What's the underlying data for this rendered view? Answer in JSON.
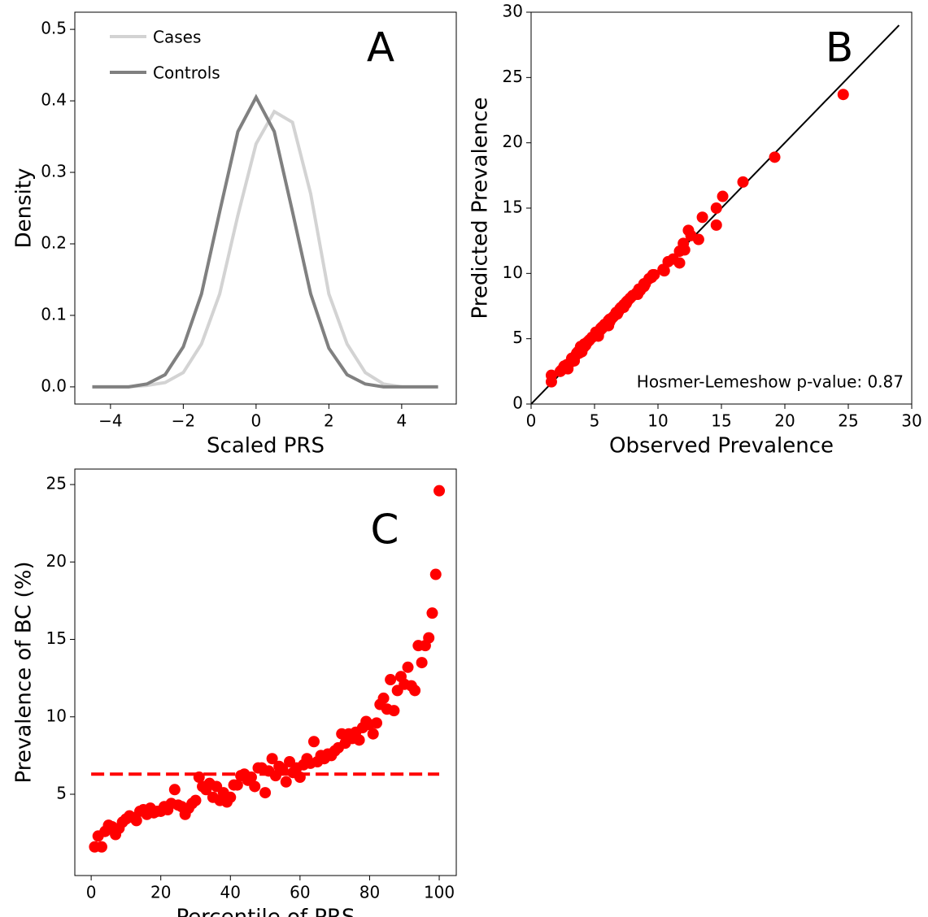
{
  "chart_data": [
    {
      "type": "line",
      "panel_label": "A",
      "xlabel": "Scaled PRS",
      "ylabel": "Density",
      "x": [
        -4.5,
        -4,
        -3.5,
        -3,
        -2.5,
        -2,
        -1.5,
        -1,
        -0.5,
        0,
        0.5,
        1,
        1.5,
        2,
        2.5,
        3,
        3.5,
        4,
        4.5,
        5
      ],
      "series": [
        {
          "name": "Cases",
          "color": "#d3d3d3",
          "values": [
            0,
            0,
            0,
            0.002,
            0.006,
            0.02,
            0.06,
            0.13,
            0.24,
            0.34,
            0.385,
            0.37,
            0.27,
            0.13,
            0.06,
            0.02,
            0.004,
            0,
            0,
            0
          ]
        },
        {
          "name": "Controls",
          "color": "#808080",
          "values": [
            0,
            0,
            0,
            0.004,
            0.017,
            0.056,
            0.13,
            0.245,
            0.357,
            0.405,
            0.357,
            0.245,
            0.13,
            0.054,
            0.017,
            0.004,
            0,
            0,
            0,
            0
          ]
        }
      ],
      "xlim": [
        -4.98,
        5.5
      ],
      "xticks": [
        {
          "value": -4,
          "label": "−4"
        },
        {
          "value": -2,
          "label": "−2"
        },
        0,
        2,
        4
      ],
      "ylim": [
        -0.024,
        0.524
      ],
      "yticks": [
        {
          "value": 0,
          "label": "0.0"
        },
        0.1,
        0.2,
        0.3,
        0.4,
        0.5
      ],
      "legend": "upper left"
    },
    {
      "type": "scatter",
      "panel_label": "B",
      "xlabel": "Observed Prevalence",
      "ylabel": "Predicted Prevalence",
      "annotation": "Hosmer-Lemeshow p-value: 0.87",
      "series": [
        {
          "color": "#ff0000",
          "x": [
            1.6,
            2.3,
            1.6,
            2.6,
            3.0,
            2.9,
            2.4,
            2.8,
            3.2,
            3.4,
            3.6,
            3.5,
            3.3,
            3.9,
            4.0,
            3.7,
            4.1,
            3.8,
            3.9,
            3.9,
            4.2,
            4.0,
            4.4,
            5.3,
            4.3,
            4.2,
            3.7,
            4.1,
            4.4,
            4.6,
            6.1,
            5.5,
            5.3,
            5.7,
            4.8,
            5.5,
            4.6,
            5.1,
            4.5,
            4.8,
            5.6,
            5.6,
            6.2,
            6.3,
            5.9,
            6.1,
            5.5,
            6.7,
            6.7,
            5.1,
            6.5,
            7.3,
            6.2,
            6.8,
            6.6,
            5.8,
            7.1,
            6.4,
            6.7,
            6.1,
            6.9,
            7.3,
            7.0,
            8.4,
            7.1,
            7.5,
            7.3,
            7.6,
            7.5,
            7.8,
            8.0,
            8.9,
            8.3,
            8.9,
            8.6,
            9.0,
            8.5,
            9.3,
            9.7,
            9.5,
            8.9,
            9.6,
            10.8,
            11.2,
            10.5,
            12.4,
            10.4,
            11.7,
            12.6,
            12.1,
            13.2,
            12.0,
            11.7,
            14.6,
            13.5,
            14.6,
            15.1,
            16.7,
            19.2,
            24.6
          ],
          "y": [
            2.2,
            2.5,
            1.7,
            2.9,
            3.1,
            2.7,
            2.6,
            3.0,
            3.5,
            3.3,
            3.9,
            3.7,
            3.4,
            4.4,
            4.0,
            4.0,
            4.3,
            3.9,
            4.1,
            4.3,
            4.4,
            4.3,
            4.7,
            5.3,
            4.5,
            4.6,
            4.0,
            4.4,
            4.7,
            4.9,
            6.0,
            5.8,
            5.2,
            5.9,
            5.1,
            5.7,
            4.9,
            5.3,
            4.8,
            5.1,
            5.8,
            5.9,
            6.3,
            6.5,
            6.1,
            6.3,
            5.8,
            6.9,
            7.0,
            5.5,
            6.7,
            7.4,
            6.5,
            6.9,
            6.8,
            6.1,
            7.4,
            6.6,
            7.0,
            6.4,
            7.1,
            7.6,
            7.3,
            8.4,
            7.4,
            7.8,
            7.5,
            7.9,
            7.7,
            8.1,
            8.3,
            9.0,
            8.5,
            9.2,
            8.7,
            9.2,
            8.8,
            9.6,
            9.9,
            9.7,
            9.2,
            9.9,
            10.9,
            11.1,
            10.2,
            13.3,
            10.3,
            11.7,
            12.9,
            11.8,
            12.6,
            12.3,
            10.8,
            13.7,
            14.3,
            15.0,
            15.9,
            17.0,
            18.9,
            23.7
          ]
        }
      ],
      "reference_line": {
        "color": "#000000",
        "x": [
          0,
          29
        ],
        "y": [
          0,
          29
        ]
      },
      "xlim": [
        0,
        30
      ],
      "xticks": [
        0,
        5,
        10,
        15,
        20,
        25,
        30
      ],
      "ylim": [
        0,
        30
      ],
      "yticks": [
        0,
        5,
        10,
        15,
        20,
        25,
        30
      ]
    },
    {
      "type": "scatter",
      "panel_label": "C",
      "xlabel": "Percentile of PRS",
      "ylabel": "Prevalence of BC (%)",
      "series": [
        {
          "color": "#ff0000",
          "x": [
            1,
            2,
            3,
            4,
            5,
            6,
            7,
            8,
            9,
            10,
            11,
            12,
            13,
            14,
            15,
            16,
            17,
            18,
            19,
            20,
            21,
            22,
            23,
            24,
            25,
            26,
            27,
            28,
            29,
            30,
            31,
            32,
            33,
            34,
            35,
            36,
            37,
            38,
            39,
            40,
            41,
            42,
            43,
            44,
            45,
            46,
            47,
            48,
            49,
            50,
            51,
            52,
            53,
            54,
            55,
            56,
            57,
            58,
            59,
            60,
            61,
            62,
            63,
            64,
            65,
            66,
            67,
            68,
            69,
            70,
            71,
            72,
            73,
            74,
            75,
            76,
            77,
            78,
            79,
            80,
            81,
            82,
            83,
            84,
            85,
            86,
            87,
            88,
            89,
            90,
            91,
            92,
            93,
            94,
            95,
            96,
            97,
            98,
            99,
            100
          ],
          "y": [
            1.6,
            2.3,
            1.6,
            2.6,
            3.0,
            2.9,
            2.4,
            2.8,
            3.2,
            3.4,
            3.6,
            3.5,
            3.3,
            3.9,
            4.0,
            3.7,
            4.1,
            3.8,
            3.9,
            3.9,
            4.2,
            4.0,
            4.4,
            5.3,
            4.3,
            4.2,
            3.7,
            4.1,
            4.4,
            4.6,
            6.1,
            5.5,
            5.3,
            5.7,
            4.8,
            5.5,
            4.6,
            5.1,
            4.5,
            4.8,
            5.6,
            5.6,
            6.2,
            6.3,
            5.9,
            6.1,
            5.5,
            6.7,
            6.7,
            5.1,
            6.5,
            7.3,
            6.2,
            6.8,
            6.6,
            5.8,
            7.1,
            6.4,
            6.7,
            6.1,
            6.9,
            7.3,
            7.0,
            8.4,
            7.1,
            7.5,
            7.3,
            7.6,
            7.5,
            7.8,
            8.0,
            8.9,
            8.3,
            8.9,
            8.6,
            9.0,
            8.5,
            9.3,
            9.7,
            9.5,
            8.9,
            9.6,
            10.8,
            11.2,
            10.5,
            12.4,
            10.4,
            11.7,
            12.6,
            12.1,
            13.2,
            12.0,
            11.7,
            14.6,
            13.5,
            14.6,
            15.1,
            16.7,
            19.2,
            24.6
          ]
        }
      ],
      "hline": {
        "color": "#ff0000",
        "value": 6.3,
        "x": [
          0,
          100
        ]
      },
      "xlim": [
        -4.7,
        104.9
      ],
      "xticks": [
        0,
        20,
        40,
        60,
        80,
        100
      ],
      "ylim": [
        -0.25,
        26
      ],
      "yticks": [
        5,
        10,
        15,
        20,
        25
      ]
    }
  ]
}
